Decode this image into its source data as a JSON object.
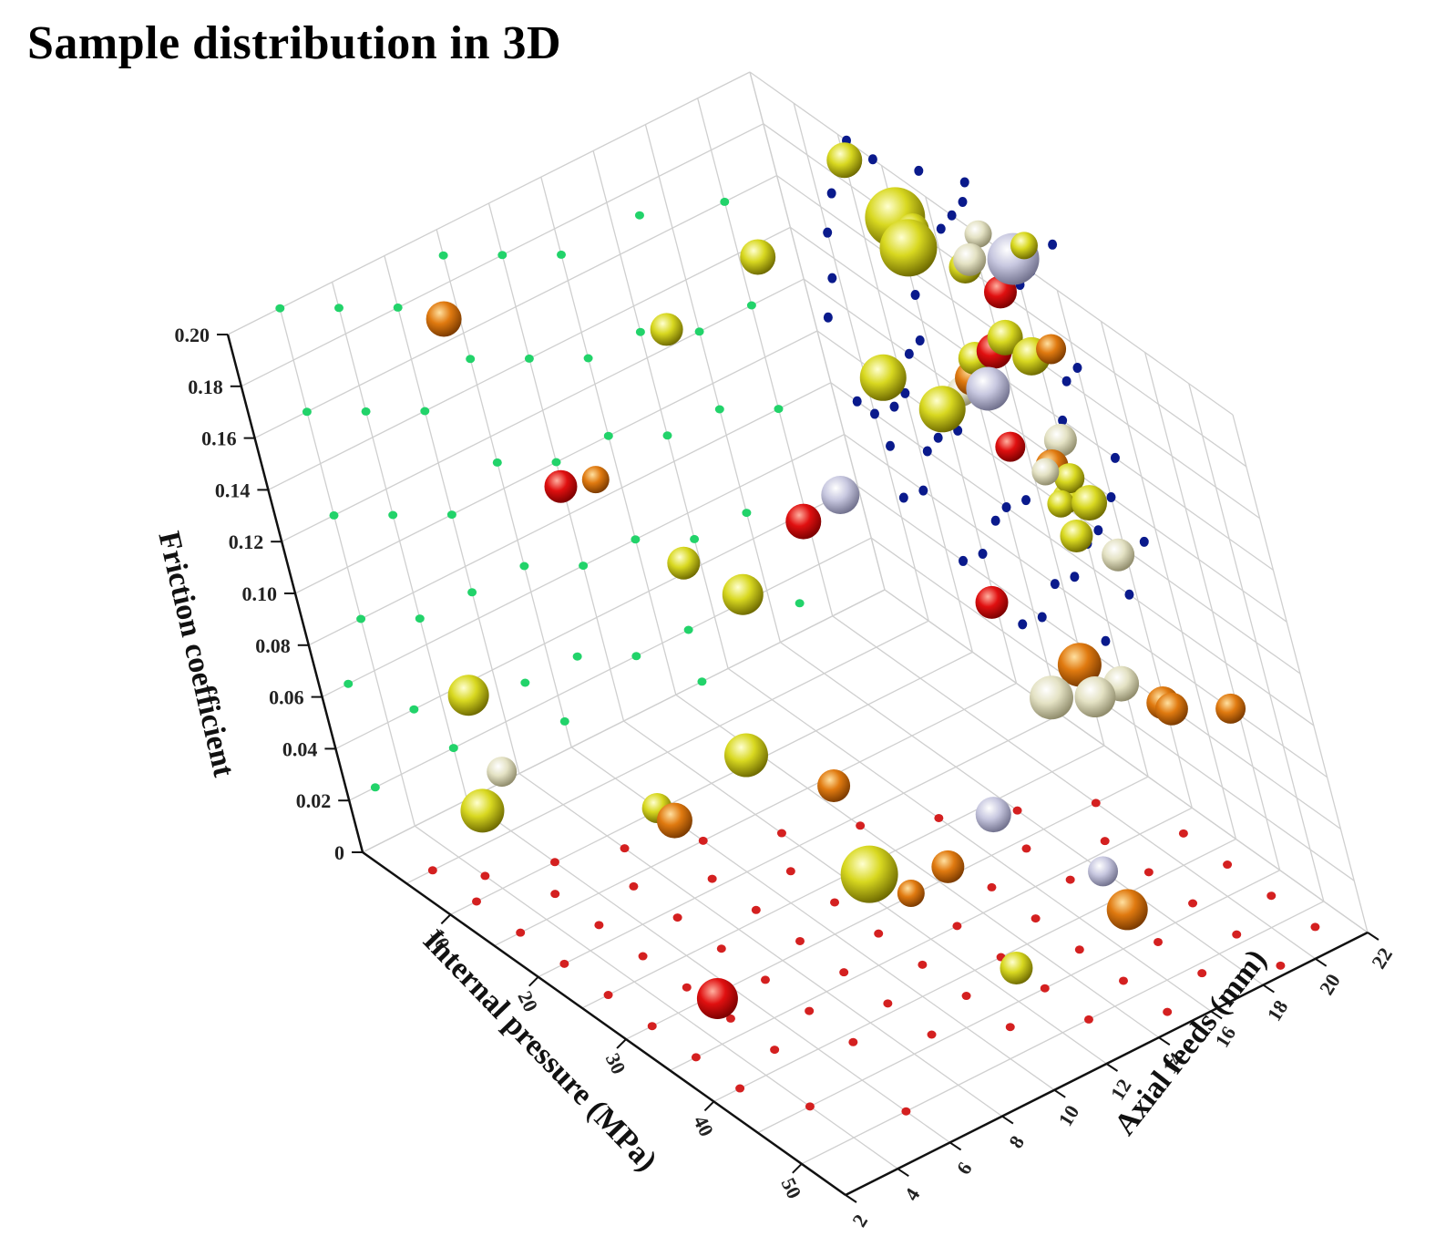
{
  "chart_data": {
    "type": "scatter",
    "subtype": "3d-bubble",
    "title": "Sample distribution in 3D",
    "xlabel": "Internal pressure (MPa)",
    "ylabel": "Axial feeds (mm)",
    "zlabel": "Friction coefficient",
    "xlim": [
      0,
      55
    ],
    "ylim": [
      2,
      22
    ],
    "zlim": [
      0,
      0.2
    ],
    "x_ticks": [
      "10",
      "20",
      "30",
      "40",
      "50"
    ],
    "y_ticks": [
      "2",
      "4",
      "6",
      "8",
      "10",
      "12",
      "14",
      "16",
      "18",
      "20",
      "22"
    ],
    "z_ticks": [
      "0",
      "0.02",
      "0.04",
      "0.06",
      "0.08",
      "0.10",
      "0.12",
      "0.14",
      "0.16",
      "0.18",
      "0.20"
    ],
    "grid": true,
    "projections": {
      "xz_wall": "#0a1a8c",
      "yz_wall": "#22d36a",
      "floor": "#d42020"
    },
    "color_classes": {
      "red": "#e01010",
      "orange": "#e07a10",
      "yellow": "#d8d820",
      "cream": "#e4e2c4",
      "lavender": "#c8c8e0"
    },
    "points": [
      {
        "x": 4,
        "y": 6,
        "z": 0.05,
        "color": "yellow",
        "size": 1.5
      },
      {
        "x": 6,
        "y": 8,
        "z": 0.19,
        "color": "orange",
        "size": 1.3
      },
      {
        "x": 8,
        "y": 10,
        "z": 0.12,
        "color": "red",
        "size": 1.2
      },
      {
        "x": 9,
        "y": 11,
        "z": 0.12,
        "color": "orange",
        "size": 1.0
      },
      {
        "x": 12,
        "y": 14,
        "z": 0.17,
        "color": "yellow",
        "size": 1.2
      },
      {
        "x": 15,
        "y": 17,
        "z": 0.19,
        "color": "yellow",
        "size": 1.3
      },
      {
        "x": 20,
        "y": 15,
        "z": 0.11,
        "color": "red",
        "size": 1.3
      },
      {
        "x": 22,
        "y": 16,
        "z": 0.12,
        "color": "lavender",
        "size": 1.4
      },
      {
        "x": 24,
        "y": 18,
        "z": 0.16,
        "color": "yellow",
        "size": 1.7
      },
      {
        "x": 24,
        "y": 20,
        "z": 0.2,
        "color": "yellow",
        "size": 2.1
      },
      {
        "x": 27,
        "y": 19,
        "z": 0.15,
        "color": "yellow",
        "size": 1.7
      },
      {
        "x": 28,
        "y": 21,
        "z": 0.2,
        "color": "cream",
        "size": 1.2
      },
      {
        "x": 30,
        "y": 22,
        "z": 0.2,
        "color": "lavender",
        "size": 1.9
      },
      {
        "x": 30,
        "y": 20,
        "z": 0.16,
        "color": "lavender",
        "size": 1.6
      },
      {
        "x": 31,
        "y": 20,
        "z": 0.14,
        "color": "red",
        "size": 1.1
      },
      {
        "x": 32,
        "y": 21,
        "z": 0.13,
        "color": "orange",
        "size": 1.2
      },
      {
        "x": 32,
        "y": 22,
        "z": 0.17,
        "color": "orange",
        "size": 1.1
      },
      {
        "x": 31,
        "y": 18,
        "z": 0.09,
        "color": "red",
        "size": 1.2
      },
      {
        "x": 10,
        "y": 13,
        "z": 0.08,
        "color": "yellow",
        "size": 1.2
      },
      {
        "x": 13,
        "y": 14,
        "z": 0.07,
        "color": "yellow",
        "size": 1.5
      },
      {
        "x": 20,
        "y": 11,
        "z": 0.04,
        "color": "yellow",
        "size": 1.6
      },
      {
        "x": 18,
        "y": 8,
        "z": 0.03,
        "color": "yellow",
        "size": 1.1
      },
      {
        "x": 20,
        "y": 8,
        "z": 0.03,
        "color": "orange",
        "size": 1.3
      },
      {
        "x": 27,
        "y": 12,
        "z": 0.04,
        "color": "orange",
        "size": 1.2
      },
      {
        "x": 10,
        "y": 4,
        "z": 0.03,
        "color": "yellow",
        "size": 1.6
      },
      {
        "x": 10,
        "y": 5,
        "z": 0.04,
        "color": "cream",
        "size": 1.1
      },
      {
        "x": 36,
        "y": 4,
        "z": 0.02,
        "color": "red",
        "size": 1.5
      },
      {
        "x": 37,
        "y": 10,
        "z": 0.04,
        "color": "yellow",
        "size": 2.1
      },
      {
        "x": 38,
        "y": 11,
        "z": 0.03,
        "color": "orange",
        "size": 1.0
      },
      {
        "x": 40,
        "y": 12,
        "z": 0.04,
        "color": "orange",
        "size": 1.2
      },
      {
        "x": 40,
        "y": 14,
        "z": 0.05,
        "color": "lavender",
        "size": 1.3
      },
      {
        "x": 50,
        "y": 11,
        "z": 0.03,
        "color": "yellow",
        "size": 1.2
      },
      {
        "x": 40,
        "y": 17,
        "z": 0.08,
        "color": "cream",
        "size": 1.6
      },
      {
        "x": 41,
        "y": 18,
        "z": 0.09,
        "color": "orange",
        "size": 1.6
      },
      {
        "x": 42,
        "y": 18,
        "z": 0.08,
        "color": "cream",
        "size": 1.5
      },
      {
        "x": 42,
        "y": 19,
        "z": 0.08,
        "color": "cream",
        "size": 1.3
      },
      {
        "x": 43,
        "y": 20,
        "z": 0.07,
        "color": "orange",
        "size": 1.2
      },
      {
        "x": 44,
        "y": 20,
        "z": 0.07,
        "color": "orange",
        "size": 1.2
      },
      {
        "x": 44,
        "y": 22,
        "z": 0.06,
        "color": "orange",
        "size": 1.1
      },
      {
        "x": 45,
        "y": 16,
        "z": 0.03,
        "color": "lavender",
        "size": 1.1
      },
      {
        "x": 47,
        "y": 16,
        "z": 0.02,
        "color": "orange",
        "size": 1.5
      },
      {
        "x": 38,
        "y": 21,
        "z": 0.11,
        "color": "cream",
        "size": 1.2
      },
      {
        "x": 37,
        "y": 20,
        "z": 0.12,
        "color": "yellow",
        "size": 1.2
      },
      {
        "x": 36,
        "y": 20,
        "z": 0.13,
        "color": "yellow",
        "size": 1.0
      },
      {
        "x": 35,
        "y": 20,
        "z": 0.14,
        "color": "cream",
        "size": 1.0
      },
      {
        "x": 34,
        "y": 21,
        "z": 0.13,
        "color": "yellow",
        "size": 1.1
      },
      {
        "x": 40,
        "y": 20,
        "z": 0.14,
        "color": "yellow",
        "size": 1.3
      },
      {
        "x": 33,
        "y": 21,
        "z": 0.12,
        "color": "yellow",
        "size": 1.1
      },
      {
        "x": 30,
        "y": 22,
        "z": 0.13,
        "color": "cream",
        "size": 1.2
      },
      {
        "x": 10,
        "y": 22,
        "z": 0.19,
        "color": "yellow",
        "size": 1.3
      },
      {
        "x": 15,
        "y": 22,
        "z": 0.18,
        "color": "yellow",
        "size": 2.2
      },
      {
        "x": 17,
        "y": 22,
        "z": 0.18,
        "color": "yellow",
        "size": 1.2
      },
      {
        "x": 20,
        "y": 22,
        "z": 0.13,
        "color": "orange",
        "size": 1.3
      },
      {
        "x": 18,
        "y": 22,
        "z": 0.12,
        "color": "cream",
        "size": 1.1
      },
      {
        "x": 23,
        "y": 22,
        "z": 0.18,
        "color": "yellow",
        "size": 1.2
      },
      {
        "x": 26,
        "y": 22,
        "z": 0.2,
        "color": "cream",
        "size": 1.0
      },
      {
        "x": 27,
        "y": 22,
        "z": 0.18,
        "color": "red",
        "size": 1.2
      },
      {
        "x": 26,
        "y": 22,
        "z": 0.16,
        "color": "yellow",
        "size": 1.3
      },
      {
        "x": 24,
        "y": 22,
        "z": 0.15,
        "color": "red",
        "size": 1.3
      },
      {
        "x": 29,
        "y": 22,
        "z": 0.16,
        "color": "yellow",
        "size": 1.4
      },
      {
        "x": 21,
        "y": 22,
        "z": 0.14,
        "color": "yellow",
        "size": 1.2
      },
      {
        "x": 32,
        "y": 22,
        "z": 0.21,
        "color": "yellow",
        "size": 1.0
      }
    ],
    "proj_xz": [
      [
        2,
        0.11
      ],
      [
        4,
        0.13
      ],
      [
        5,
        0.15
      ],
      [
        7,
        0.17
      ],
      [
        9,
        0.19
      ],
      [
        11,
        0.2
      ],
      [
        14,
        0.2
      ],
      [
        3,
        0.08
      ],
      [
        5,
        0.08
      ],
      [
        6,
        0.07
      ],
      [
        8,
        0.09
      ],
      [
        10,
        0.1
      ],
      [
        12,
        0.12
      ],
      [
        14,
        0.13
      ],
      [
        15,
        0.15
      ],
      [
        17,
        0.17
      ],
      [
        19,
        0.18
      ],
      [
        21,
        0.19
      ],
      [
        23,
        0.2
      ],
      [
        25,
        0.21
      ],
      [
        6,
        0.05
      ],
      [
        9,
        0.06
      ],
      [
        11,
        0.08
      ],
      [
        13,
        0.09
      ],
      [
        16,
        0.1
      ],
      [
        18,
        0.12
      ],
      [
        21,
        0.13
      ],
      [
        23,
        0.15
      ],
      [
        25,
        0.16
      ],
      [
        27,
        0.18
      ],
      [
        30,
        0.19
      ],
      [
        32,
        0.2
      ],
      [
        12,
        0.04
      ],
      [
        15,
        0.05
      ],
      [
        18,
        0.07
      ],
      [
        20,
        0.08
      ],
      [
        23,
        0.09
      ],
      [
        26,
        0.11
      ],
      [
        28,
        0.12
      ],
      [
        31,
        0.14
      ],
      [
        33,
        0.16
      ],
      [
        35,
        0.17
      ],
      [
        18,
        0.03
      ],
      [
        21,
        0.04
      ],
      [
        24,
        0.06
      ],
      [
        27,
        0.07
      ],
      [
        30,
        0.09
      ],
      [
        32,
        0.1
      ],
      [
        35,
        0.12
      ],
      [
        37,
        0.14
      ],
      [
        29,
        0.05
      ],
      [
        34,
        0.08
      ],
      [
        38,
        0.11
      ],
      [
        33,
        0.21
      ],
      [
        36,
        0.22
      ],
      [
        20,
        0.21
      ],
      [
        26,
        0.22
      ]
    ],
    "proj_yz": [
      [
        4,
        0.2
      ],
      [
        6,
        0.19
      ],
      [
        8,
        0.18
      ],
      [
        10,
        0.19
      ],
      [
        12,
        0.18
      ],
      [
        14,
        0.17
      ],
      [
        17,
        0.17
      ],
      [
        20,
        0.16
      ],
      [
        4,
        0.16
      ],
      [
        6,
        0.15
      ],
      [
        8,
        0.14
      ],
      [
        10,
        0.15
      ],
      [
        12,
        0.14
      ],
      [
        14,
        0.13
      ],
      [
        16,
        0.13
      ],
      [
        18,
        0.12
      ],
      [
        20,
        0.12
      ],
      [
        4,
        0.12
      ],
      [
        6,
        0.11
      ],
      [
        8,
        0.1
      ],
      [
        10,
        0.11
      ],
      [
        12,
        0.1
      ],
      [
        14,
        0.1
      ],
      [
        16,
        0.09
      ],
      [
        18,
        0.09
      ],
      [
        20,
        0.08
      ],
      [
        4,
        0.08
      ],
      [
        6,
        0.07
      ],
      [
        8,
        0.07
      ],
      [
        10,
        0.07
      ],
      [
        12,
        0.06
      ],
      [
        14,
        0.06
      ],
      [
        16,
        0.05
      ],
      [
        18,
        0.05
      ],
      [
        20,
        0.04
      ],
      [
        5,
        0.04
      ],
      [
        7,
        0.04
      ],
      [
        9,
        0.03
      ],
      [
        11,
        0.03
      ],
      [
        13,
        0.02
      ],
      [
        15,
        0.02
      ],
      [
        17,
        0.02
      ],
      [
        19,
        0.01
      ],
      [
        6,
        0.02
      ],
      [
        10,
        0.01
      ],
      [
        15,
        0.0
      ],
      [
        3,
        0.06
      ],
      [
        3,
        0.02
      ]
    ],
    "proj_xy": [
      [
        5,
        3
      ],
      [
        8,
        4
      ],
      [
        10,
        6
      ],
      [
        12,
        8
      ],
      [
        15,
        10
      ],
      [
        18,
        12
      ],
      [
        21,
        14
      ],
      [
        24,
        16
      ],
      [
        27,
        18
      ],
      [
        30,
        20
      ],
      [
        10,
        3
      ],
      [
        13,
        5
      ],
      [
        16,
        7
      ],
      [
        19,
        9
      ],
      [
        22,
        11
      ],
      [
        25,
        13
      ],
      [
        28,
        15
      ],
      [
        31,
        17
      ],
      [
        34,
        19
      ],
      [
        37,
        21
      ],
      [
        15,
        3
      ],
      [
        18,
        5
      ],
      [
        21,
        7
      ],
      [
        24,
        9
      ],
      [
        27,
        11
      ],
      [
        30,
        13
      ],
      [
        33,
        15
      ],
      [
        36,
        17
      ],
      [
        39,
        19
      ],
      [
        42,
        21
      ],
      [
        20,
        3
      ],
      [
        23,
        5
      ],
      [
        26,
        7
      ],
      [
        29,
        9
      ],
      [
        32,
        11
      ],
      [
        35,
        13
      ],
      [
        38,
        15
      ],
      [
        41,
        17
      ],
      [
        44,
        19
      ],
      [
        47,
        21
      ],
      [
        25,
        3
      ],
      [
        28,
        5
      ],
      [
        31,
        7
      ],
      [
        34,
        9
      ],
      [
        37,
        11
      ],
      [
        40,
        13
      ],
      [
        43,
        15
      ],
      [
        46,
        17
      ],
      [
        49,
        19
      ],
      [
        52,
        21
      ],
      [
        30,
        3
      ],
      [
        33,
        5
      ],
      [
        36,
        7
      ],
      [
        39,
        9
      ],
      [
        42,
        11
      ],
      [
        45,
        13
      ],
      [
        48,
        15
      ],
      [
        51,
        17
      ],
      [
        54,
        19
      ],
      [
        35,
        3
      ],
      [
        38,
        5
      ],
      [
        41,
        7
      ],
      [
        44,
        9
      ],
      [
        47,
        11
      ],
      [
        50,
        13
      ],
      [
        53,
        15
      ],
      [
        40,
        3
      ],
      [
        45,
        4
      ],
      [
        50,
        6
      ]
    ]
  }
}
